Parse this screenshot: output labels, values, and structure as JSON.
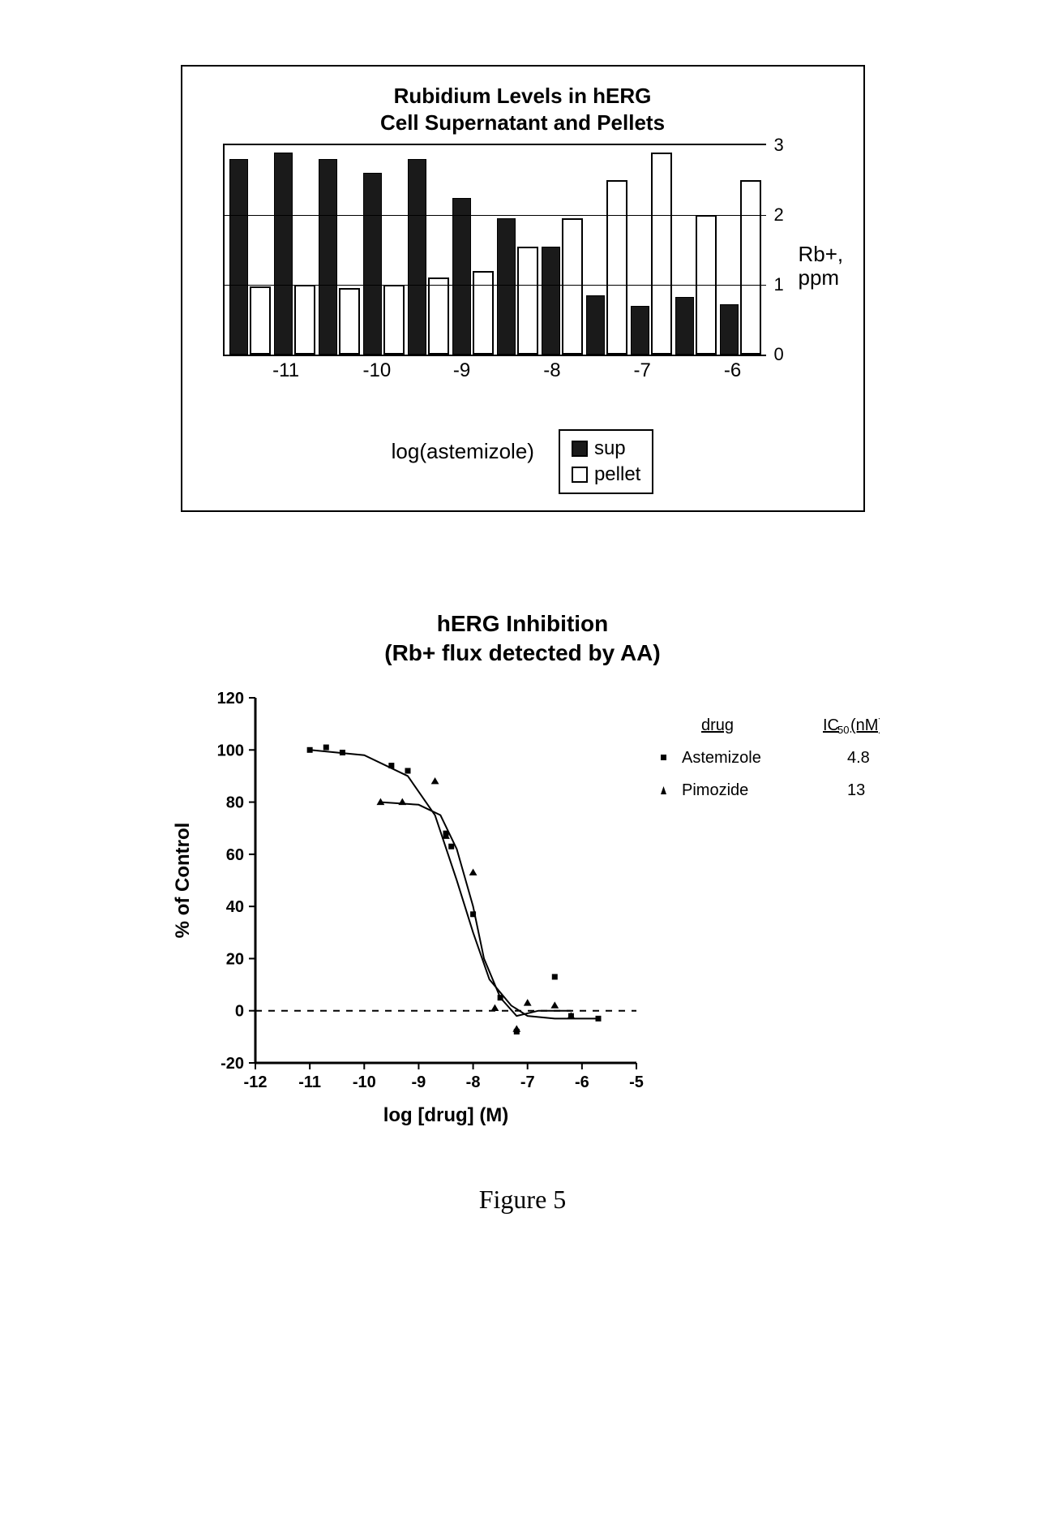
{
  "figure_caption": "Figure 5",
  "chart1": {
    "type": "bar",
    "title_line1": "Rubidium Levels in hERG",
    "title_line2": "Cell Supernatant and Pellets",
    "x_title": "log(astemizole)",
    "y_axis_title_line1": "Rb+,",
    "y_axis_title_line2": "ppm",
    "ylim": [
      0,
      3
    ],
    "ytick_step": 1,
    "yticks": [
      0,
      1,
      2,
      3
    ],
    "x_major_labels": [
      "-11",
      "-10",
      "-9",
      "-8",
      "-7",
      "-6"
    ],
    "legend": {
      "sup": "sup",
      "pellet": "pellet"
    },
    "series": [
      {
        "pair_label_slot": "",
        "sup": 2.8,
        "pellet": 0.98
      },
      {
        "pair_label_slot": "-11",
        "sup": 2.9,
        "pellet": 1.0
      },
      {
        "pair_label_slot": "",
        "sup": 2.8,
        "pellet": 0.95
      },
      {
        "pair_label_slot": "-10",
        "sup": 2.6,
        "pellet": 1.0
      },
      {
        "pair_label_slot": "",
        "sup": 2.8,
        "pellet": 1.1
      },
      {
        "pair_label_slot": "-9",
        "sup": 2.25,
        "pellet": 1.2
      },
      {
        "pair_label_slot": "",
        "sup": 1.95,
        "pellet": 1.55
      },
      {
        "pair_label_slot": "-8",
        "sup": 1.55,
        "pellet": 1.95
      },
      {
        "pair_label_slot": "",
        "sup": 0.85,
        "pellet": 2.5
      },
      {
        "pair_label_slot": "-7",
        "sup": 0.7,
        "pellet": 2.9
      },
      {
        "pair_label_slot": "",
        "sup": 0.82,
        "pellet": 2.0
      },
      {
        "pair_label_slot": "-6",
        "sup": 0.72,
        "pellet": 2.5
      }
    ],
    "colors": {
      "sup_fill": "#1a1a1a",
      "pellet_fill": "#ffffff",
      "border": "#000000",
      "background": "#ffffff",
      "grid": "#000000"
    },
    "title_fontsize": 26,
    "label_fontsize": 24
  },
  "chart2": {
    "type": "scatter",
    "title_line1": "hERG Inhibition",
    "title_line2": "(Rb+ flux detected by AA)",
    "x_title": "log [drug] (M)",
    "y_title": "% of Control",
    "xlim": [
      -12,
      -5
    ],
    "ylim": [
      -20,
      120
    ],
    "xticks": [
      -12,
      -11,
      -10,
      -9,
      -8,
      -7,
      -6,
      -5
    ],
    "yticks": [
      -20,
      0,
      20,
      40,
      60,
      80,
      100,
      120
    ],
    "zero_line_y": 0,
    "legend_header": {
      "drug": "drug",
      "ic50": "IC₅₀ (nM)"
    },
    "legend": [
      {
        "marker": "square",
        "name": "Astemizole",
        "ic50": "4.8"
      },
      {
        "marker": "triangle",
        "name": "Pimozide",
        "ic50": "13"
      }
    ],
    "astemizole_points": [
      [
        -11.0,
        100
      ],
      [
        -10.7,
        101
      ],
      [
        -10.4,
        99
      ],
      [
        -9.5,
        94
      ],
      [
        -9.2,
        92
      ],
      [
        -8.5,
        68
      ],
      [
        -8.4,
        63
      ],
      [
        -8.0,
        37
      ],
      [
        -7.5,
        5
      ],
      [
        -7.2,
        -8
      ],
      [
        -6.5,
        13
      ],
      [
        -6.2,
        -2
      ],
      [
        -5.7,
        -3
      ]
    ],
    "pimozide_points": [
      [
        -9.7,
        80
      ],
      [
        -9.3,
        80
      ],
      [
        -8.7,
        88
      ],
      [
        -8.5,
        67
      ],
      [
        -8.0,
        53
      ],
      [
        -7.6,
        1
      ],
      [
        -7.2,
        -7
      ],
      [
        -7.0,
        3
      ],
      [
        -6.5,
        2
      ],
      [
        -6.2,
        -2
      ]
    ],
    "astemizole_curve": [
      [
        -11.0,
        100
      ],
      [
        -10.0,
        98
      ],
      [
        -9.2,
        90
      ],
      [
        -8.7,
        75
      ],
      [
        -8.3,
        50
      ],
      [
        -8.0,
        30
      ],
      [
        -7.7,
        12
      ],
      [
        -7.3,
        2
      ],
      [
        -7.0,
        -2
      ],
      [
        -6.5,
        -3
      ],
      [
        -5.7,
        -3
      ]
    ],
    "pimozide_curve": [
      [
        -9.7,
        80
      ],
      [
        -9.0,
        79
      ],
      [
        -8.6,
        75
      ],
      [
        -8.3,
        62
      ],
      [
        -8.0,
        40
      ],
      [
        -7.8,
        20
      ],
      [
        -7.5,
        5
      ],
      [
        -7.2,
        -2
      ],
      [
        -6.8,
        0
      ],
      [
        -6.2,
        0
      ]
    ],
    "colors": {
      "marker": "#000000",
      "curve": "#000000",
      "axis": "#000000",
      "dashed": "#000000",
      "background": "#ffffff"
    },
    "marker_size": 7,
    "line_width": 2,
    "title_fontsize": 28,
    "axis_label_fontsize": 24,
    "tick_fontsize": 20
  }
}
